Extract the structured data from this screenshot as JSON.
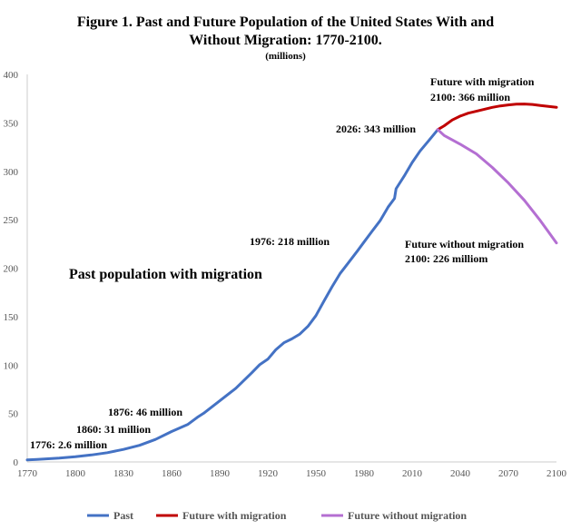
{
  "title": {
    "line1": "Figure 1. Past and Future Population of the United States With and",
    "line2": "Without Migration: 1770-2100.",
    "line3": "(millions)"
  },
  "chart_data": {
    "type": "line",
    "xlim": [
      1770,
      2100
    ],
    "ylim": [
      0,
      400
    ],
    "x_ticks": [
      1770,
      1800,
      1830,
      1860,
      1890,
      1920,
      1950,
      1980,
      2010,
      2040,
      2070,
      2100
    ],
    "y_ticks": [
      0,
      50,
      100,
      150,
      200,
      250,
      300,
      350,
      400
    ],
    "grid": false,
    "legend_position": "bottom",
    "series": [
      {
        "name": "Past",
        "color": "#4472C4",
        "points": [
          [
            1770,
            2.2
          ],
          [
            1776,
            2.6
          ],
          [
            1790,
            3.9
          ],
          [
            1800,
            5.3
          ],
          [
            1810,
            7.2
          ],
          [
            1820,
            9.6
          ],
          [
            1830,
            12.9
          ],
          [
            1840,
            17.1
          ],
          [
            1850,
            23.2
          ],
          [
            1860,
            31.4
          ],
          [
            1870,
            38.6
          ],
          [
            1876,
            46
          ],
          [
            1880,
            50.2
          ],
          [
            1890,
            63
          ],
          [
            1900,
            76
          ],
          [
            1910,
            92
          ],
          [
            1915,
            100.5
          ],
          [
            1920,
            106
          ],
          [
            1925,
            115.8
          ],
          [
            1930,
            123
          ],
          [
            1935,
            127
          ],
          [
            1940,
            132
          ],
          [
            1945,
            140
          ],
          [
            1950,
            151
          ],
          [
            1955,
            165.9
          ],
          [
            1960,
            180.7
          ],
          [
            1965,
            194.3
          ],
          [
            1970,
            205
          ],
          [
            1976,
            218
          ],
          [
            1980,
            227
          ],
          [
            1985,
            238
          ],
          [
            1990,
            249
          ],
          [
            1995,
            263
          ],
          [
            1999,
            272
          ],
          [
            2000,
            282
          ],
          [
            2005,
            295
          ],
          [
            2010,
            309
          ],
          [
            2015,
            321
          ],
          [
            2020,
            331
          ],
          [
            2026,
            343
          ]
        ]
      },
      {
        "name": "Future with migration",
        "color": "#C00000",
        "points": [
          [
            2026,
            343
          ],
          [
            2030,
            347
          ],
          [
            2035,
            353
          ],
          [
            2040,
            357
          ],
          [
            2045,
            360
          ],
          [
            2050,
            362
          ],
          [
            2055,
            364
          ],
          [
            2060,
            366
          ],
          [
            2065,
            367.5
          ],
          [
            2070,
            368.5
          ],
          [
            2075,
            369.3
          ],
          [
            2080,
            369.5
          ],
          [
            2085,
            369
          ],
          [
            2090,
            368
          ],
          [
            2095,
            367
          ],
          [
            2100,
            366
          ]
        ]
      },
      {
        "name": "Future without migration",
        "color": "#B46FD2",
        "points": [
          [
            2026,
            343
          ],
          [
            2030,
            337
          ],
          [
            2040,
            328
          ],
          [
            2050,
            318
          ],
          [
            2060,
            304
          ],
          [
            2070,
            288
          ],
          [
            2080,
            270
          ],
          [
            2090,
            249
          ],
          [
            2100,
            226
          ]
        ]
      }
    ],
    "annotations": {
      "a1776": "1776: 2.6 million",
      "a1860": "1860: 31 million",
      "a1876": "1876: 46 million",
      "a1976": "1976: 218  million",
      "a2026": "2026: 343 million",
      "fwm1": "Future with migration",
      "fwm2": "2100: 366 million",
      "fwo1": "Future without migration",
      "fwo2": "2100: 226 milliom",
      "past": "Past population with migration"
    }
  }
}
